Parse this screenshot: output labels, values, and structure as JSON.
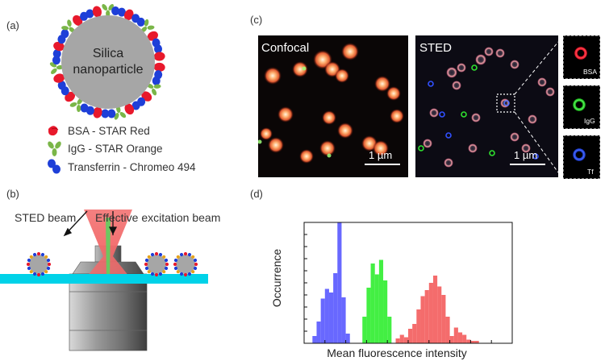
{
  "panels": {
    "a": {
      "label": "(a)",
      "particle_line1": "Silica",
      "particle_line2": "nanoparticle",
      "legend": [
        {
          "text": "BSA - STAR Red",
          "icon": "bsa-protein-icon",
          "color": "#e8192c"
        },
        {
          "text": "IgG - STAR Orange",
          "icon": "igg-antibody-icon",
          "color": "#7ab648"
        },
        {
          "text": "Transferrin - Chromeo 494",
          "icon": "transferrin-protein-icon",
          "color": "#1e3fd8"
        }
      ]
    },
    "b": {
      "label": "(b)",
      "sted_beam": "STED beam",
      "excitation_beam": "Effective excitation beam"
    },
    "c": {
      "label": "(c)",
      "confocal_title": "Confocal",
      "sted_title": "STED",
      "scalebar": "1 µm",
      "insets": [
        "BSA",
        "IgG",
        "Tf"
      ]
    },
    "d": {
      "label": "(d)"
    }
  },
  "chart_data": {
    "type": "bar",
    "xlabel": "Mean fluorescence intensity",
    "ylabel": "Occurrence",
    "grid": false,
    "xlim": [
      0,
      1
    ],
    "ylim": [
      0,
      1
    ],
    "series": [
      {
        "color": "#5b5bff",
        "x": [
          0.04,
          0.06,
          0.08,
          0.1,
          0.12,
          0.14,
          0.16,
          0.18,
          0.2
        ],
        "values": [
          0.06,
          0.18,
          0.37,
          0.45,
          0.42,
          0.58,
          1.0,
          0.38,
          0.08
        ]
      },
      {
        "color": "#33ee33",
        "x": [
          0.28,
          0.3,
          0.32,
          0.34,
          0.36,
          0.38,
          0.4
        ],
        "values": [
          0.22,
          0.46,
          0.66,
          0.57,
          0.69,
          0.52,
          0.22
        ]
      },
      {
        "color": "#f36060",
        "x": [
          0.44,
          0.46,
          0.48,
          0.5,
          0.52,
          0.54,
          0.56,
          0.58,
          0.6,
          0.62,
          0.64,
          0.66,
          0.68,
          0.7,
          0.72,
          0.74,
          0.76,
          0.78,
          0.8,
          0.82
        ],
        "values": [
          0.04,
          0.07,
          0.05,
          0.12,
          0.16,
          0.28,
          0.39,
          0.44,
          0.5,
          0.56,
          0.47,
          0.4,
          0.22,
          0.06,
          0.13,
          0.09,
          0.07,
          0.03,
          0.02,
          0.02
        ]
      }
    ]
  },
  "colors": {
    "bsa": "#e8192c",
    "igg": "#7ab648",
    "transferrin": "#1e3fd8",
    "silica": "#a6a6a6",
    "coverslip": "#00d2e8",
    "sted_beam": "#f26a6a",
    "excitation_beam": "#5ed05e"
  }
}
